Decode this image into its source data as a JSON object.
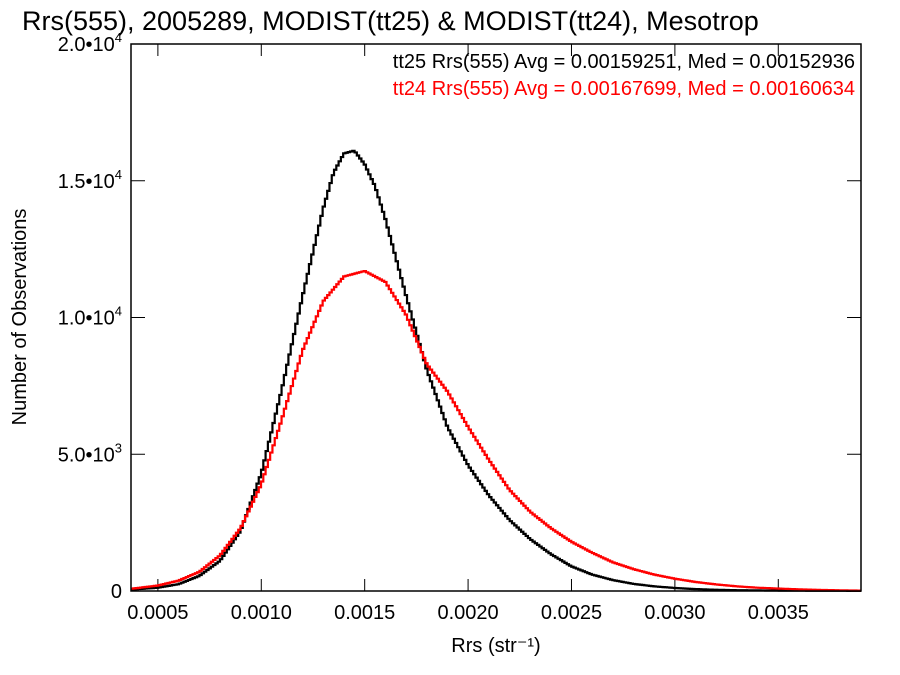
{
  "chart_data": {
    "type": "line",
    "title": "Rrs(555), 2005289, MODIST(tt25) & MODIST(tt24), Mesotrop",
    "xlabel": "Rrs (str⁻¹)",
    "ylabel": "Number of Observations",
    "xlim": [
      0.00037,
      0.0039
    ],
    "ylim": [
      0,
      20000
    ],
    "x_ticks": [
      {
        "value": 0.0005,
        "label": "0.0005"
      },
      {
        "value": 0.001,
        "label": "0.0010"
      },
      {
        "value": 0.0015,
        "label": "0.0015"
      },
      {
        "value": 0.002,
        "label": "0.0020"
      },
      {
        "value": 0.0025,
        "label": "0.0025"
      },
      {
        "value": 0.003,
        "label": "0.0030"
      },
      {
        "value": 0.0035,
        "label": "0.0035"
      }
    ],
    "y_ticks": [
      {
        "value": 0,
        "base": "0",
        "exp": ""
      },
      {
        "value": 5000,
        "base": "5.0•10",
        "exp": "3"
      },
      {
        "value": 10000,
        "base": "1.0•10",
        "exp": "4"
      },
      {
        "value": 15000,
        "base": "1.5•10",
        "exp": "4"
      },
      {
        "value": 20000,
        "base": "2.0•10",
        "exp": "4"
      }
    ],
    "grid": false,
    "legend_position": "top-right",
    "series": [
      {
        "label": "tt25 Rrs(555) Avg = 0.00159251, Med = 0.00152936",
        "color": "#000000",
        "x": [
          0.00037,
          0.0005,
          0.0006,
          0.0007,
          0.0008,
          0.0009,
          0.001,
          0.0011,
          0.0012,
          0.0013,
          0.00135,
          0.0014,
          0.00145,
          0.0015,
          0.00155,
          0.0016,
          0.0017,
          0.0018,
          0.0019,
          0.002,
          0.0021,
          0.0022,
          0.0023,
          0.0024,
          0.0025,
          0.0026,
          0.0027,
          0.0028,
          0.0029,
          0.003,
          0.0031,
          0.0032,
          0.0033,
          0.0035,
          0.0037,
          0.0039
        ],
        "y": [
          50,
          120,
          250,
          550,
          1100,
          2200,
          4300,
          7400,
          10800,
          14000,
          15300,
          16000,
          16100,
          15600,
          14800,
          13600,
          10800,
          8100,
          6000,
          4600,
          3500,
          2600,
          1900,
          1350,
          900,
          600,
          400,
          260,
          170,
          110,
          70,
          45,
          30,
          15,
          8,
          5
        ]
      },
      {
        "label": "tt24 Rrs(555) Avg = 0.00167699, Med = 0.00160634",
        "color": "#ff0000",
        "x": [
          0.00037,
          0.0005,
          0.0006,
          0.0007,
          0.0008,
          0.0009,
          0.001,
          0.0011,
          0.0012,
          0.0013,
          0.0014,
          0.0015,
          0.0016,
          0.0017,
          0.0018,
          0.0019,
          0.002,
          0.0021,
          0.0022,
          0.0023,
          0.0024,
          0.0025,
          0.0026,
          0.0027,
          0.0028,
          0.0029,
          0.003,
          0.0031,
          0.0032,
          0.0033,
          0.0034,
          0.0035,
          0.0036,
          0.0037,
          0.0038,
          0.0039
        ],
        "y": [
          80,
          200,
          380,
          700,
          1300,
          2300,
          3900,
          6300,
          8800,
          10600,
          11500,
          11700,
          11300,
          10100,
          8300,
          7300,
          6000,
          4800,
          3700,
          2900,
          2300,
          1800,
          1400,
          1050,
          800,
          600,
          450,
          330,
          240,
          170,
          120,
          90,
          60,
          40,
          25,
          15
        ]
      }
    ]
  }
}
